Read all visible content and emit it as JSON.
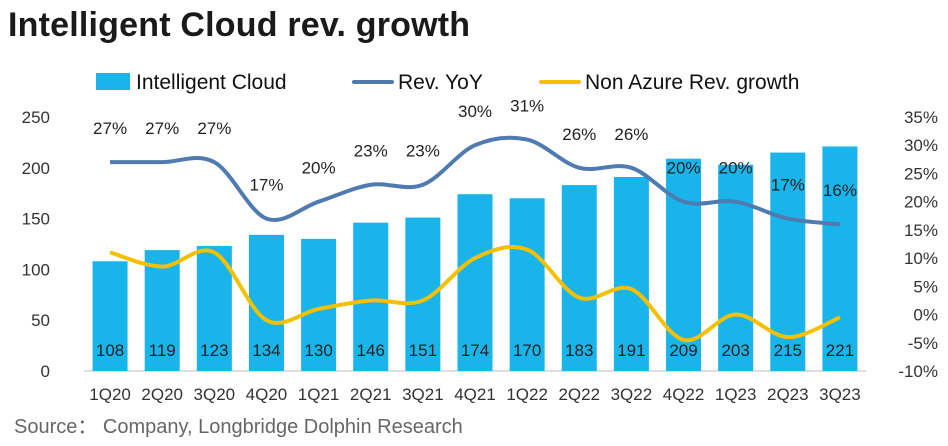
{
  "chart_data": {
    "type": "bar",
    "title": "Intelligent Cloud rev. growth",
    "categories": [
      "1Q20",
      "2Q20",
      "3Q20",
      "4Q20",
      "1Q21",
      "2Q21",
      "3Q21",
      "4Q21",
      "1Q22",
      "2Q22",
      "3Q22",
      "4Q22",
      "1Q23",
      "2Q23",
      "3Q23"
    ],
    "series": [
      {
        "name": "Intelligent Cloud",
        "type": "bar",
        "axis": "left",
        "values": [
          108,
          119,
          123,
          134,
          130,
          146,
          151,
          174,
          170,
          183,
          191,
          209,
          203,
          215,
          221
        ],
        "labels": [
          "108",
          "119",
          "123",
          "134",
          "130",
          "146",
          "151",
          "174",
          "170",
          "183",
          "191",
          "209",
          "203",
          "215",
          "221"
        ]
      },
      {
        "name": "Rev. YoY",
        "type": "line",
        "axis": "right",
        "values": [
          27,
          27,
          27,
          17,
          20,
          23,
          23,
          30,
          31,
          26,
          26,
          20,
          20,
          17,
          16
        ],
        "labels": [
          "27%",
          "27%",
          "27%",
          "17%",
          "20%",
          "23%",
          "23%",
          "30%",
          "31%",
          "26%",
          "26%",
          "20%",
          "20%",
          "17%",
          "16%"
        ]
      },
      {
        "name": "Non Azure Rev. growth",
        "type": "line",
        "axis": "right",
        "values": [
          11,
          8.5,
          11,
          -1,
          1,
          2.5,
          2.5,
          10,
          11.5,
          3,
          4.5,
          -4.5,
          0,
          -4,
          -0.5
        ]
      }
    ],
    "y_left": {
      "min": 0,
      "max": 250,
      "ticks": [
        "0",
        "50",
        "100",
        "150",
        "200",
        "250"
      ],
      "tick_values": [
        0,
        50,
        100,
        150,
        200,
        250
      ]
    },
    "y_right": {
      "min": -10,
      "max": 35,
      "ticks": [
        "-10%",
        "-5%",
        "0%",
        "5%",
        "10%",
        "15%",
        "20%",
        "25%",
        "30%",
        "35%"
      ],
      "tick_values": [
        -10,
        -5,
        0,
        5,
        10,
        15,
        20,
        25,
        30,
        35
      ]
    },
    "legend_position": "top",
    "grid": false,
    "colors": {
      "bar": "#19b4ea",
      "yoy": "#4f7bb0",
      "non_azure": "#f5c000"
    }
  },
  "source": "Source：  Company, Longbridge Dolphin Research"
}
